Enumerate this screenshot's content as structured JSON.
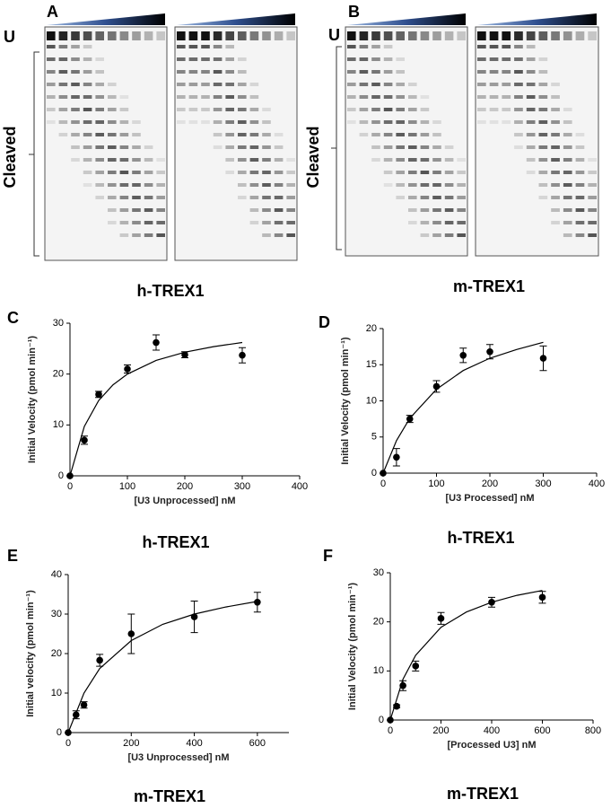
{
  "gels": {
    "panels": [
      {
        "letter": "A",
        "u_label": "U",
        "cleaved_label": "Cleaved",
        "caption": "h-TREX1"
      },
      {
        "letter": "B",
        "u_label": "U",
        "cleaved_label": "Cleaved",
        "caption": "m-TREX1"
      }
    ]
  },
  "chart_data": [
    {
      "type": "scatter",
      "panel": "C",
      "title": "h-TREX1",
      "x_label": "[U3 Unprocessed] nM",
      "y_label": "Initial Velocity (pmol min⁻¹)",
      "color": "#000000",
      "x": [
        0,
        25,
        50,
        100,
        150,
        200,
        300
      ],
      "values": [
        0,
        7,
        16,
        21,
        26.2,
        23.8,
        23.7
      ],
      "errors": [
        0,
        0.8,
        0.6,
        0.8,
        1.5,
        0.6,
        1.5
      ],
      "fit": {
        "x": [
          0,
          25,
          50,
          75,
          100,
          150,
          200,
          250,
          300
        ],
        "values": [
          0,
          9.7,
          14.8,
          17.9,
          20,
          22.7,
          24.3,
          25.4,
          26.2
        ]
      },
      "xlim": [
        0,
        400
      ],
      "xticks": [
        0,
        100,
        200,
        300,
        400
      ],
      "ylim": [
        0,
        30
      ],
      "yticks": [
        0,
        10,
        20,
        30
      ]
    },
    {
      "type": "scatter",
      "panel": "D",
      "title": "h-TREX1",
      "x_label": "[U3 Processed] nM",
      "y_label": "Initial Velocity (pmol min⁻¹)",
      "color": "#000000",
      "x": [
        0,
        25,
        50,
        100,
        150,
        200,
        300
      ],
      "values": [
        0,
        2.2,
        7.5,
        12,
        16.3,
        16.8,
        15.9
      ],
      "errors": [
        0,
        1.2,
        0.5,
        0.8,
        1,
        1,
        1.7
      ],
      "fit": {
        "x": [
          0,
          25,
          50,
          100,
          150,
          200,
          250,
          300
        ],
        "values": [
          0,
          4.5,
          7.6,
          11.6,
          14.2,
          15.9,
          17.1,
          18.1
        ]
      },
      "xlim": [
        0,
        400
      ],
      "xticks": [
        0,
        100,
        200,
        300,
        400
      ],
      "ylim": [
        0,
        20
      ],
      "yticks": [
        0,
        5,
        10,
        15,
        20
      ]
    },
    {
      "type": "scatter",
      "panel": "E",
      "title": "m-TREX1",
      "x_label": "[U3 Unprocessed] nM",
      "y_label": "Initial velocity (pmol min⁻¹)",
      "color": "#000000",
      "x": [
        0,
        25,
        50,
        100,
        200,
        400,
        600
      ],
      "values": [
        0,
        4.5,
        7,
        18.3,
        25,
        29.3,
        33
      ],
      "errors": [
        0,
        1,
        0.8,
        1.5,
        5,
        4,
        2.5
      ],
      "fit": {
        "x": [
          0,
          50,
          100,
          200,
          300,
          400,
          500,
          600
        ],
        "values": [
          0,
          10,
          16.2,
          23.3,
          27.4,
          30,
          31.8,
          33.2
        ]
      },
      "xlim": [
        0,
        700
      ],
      "xticks": [
        0,
        200,
        400,
        600
      ],
      "ylim": [
        0,
        40
      ],
      "yticks": [
        0,
        10,
        20,
        30,
        40
      ]
    },
    {
      "type": "scatter",
      "panel": "F",
      "title": "m-TREX1",
      "x_label": "[Processed U3] nM",
      "y_label": "Initial Velocity (pmol min⁻¹)",
      "color": "#000000",
      "x": [
        0,
        25,
        50,
        100,
        200,
        400,
        600
      ],
      "values": [
        0,
        2.8,
        7,
        11,
        20.7,
        24,
        25
      ],
      "errors": [
        0,
        0.3,
        1,
        1,
        1.2,
        1,
        1.2
      ],
      "fit": {
        "x": [
          0,
          50,
          100,
          200,
          300,
          400,
          500,
          600
        ],
        "values": [
          0,
          8.3,
          13.2,
          18.9,
          22,
          24,
          25.4,
          26.4
        ]
      },
      "xlim": [
        0,
        800
      ],
      "xticks": [
        0,
        200,
        400,
        600,
        800
      ],
      "ylim": [
        0,
        30
      ],
      "yticks": [
        0,
        10,
        20,
        30
      ]
    }
  ]
}
